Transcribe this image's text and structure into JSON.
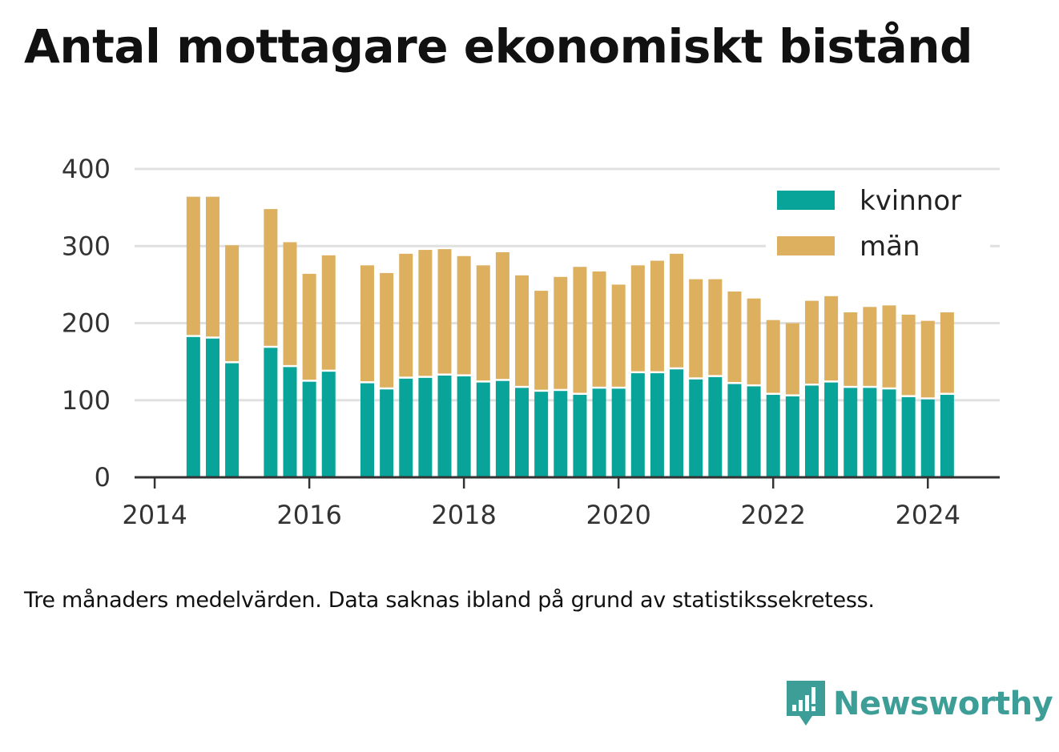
{
  "title": "Antal mottagare ekonomiskt bistånd",
  "note": "Tre månaders medelvärden. Data saknas ibland på grund av statistikssekretess.",
  "logo": {
    "text": "Newsworthy",
    "icon": "newsworthy-logo-icon"
  },
  "colors": {
    "kvinnor": "#08a399",
    "man": "#dcb05e",
    "grid": "#e0e0e0",
    "axis": "#333333"
  },
  "chart_data": {
    "type": "bar",
    "stacked": true,
    "xlabel": "",
    "ylabel": "",
    "ylim": [
      0,
      400
    ],
    "yticks": [
      0,
      100,
      200,
      300,
      400
    ],
    "xticks": [
      2014,
      2016,
      2018,
      2020,
      2022,
      2024
    ],
    "grid": true,
    "legend_position": "top-right",
    "x": [
      2014.5,
      2014.75,
      2015.0,
      2015.5,
      2015.75,
      2016.0,
      2016.25,
      2016.75,
      2017.0,
      2017.25,
      2017.5,
      2017.75,
      2018.0,
      2018.25,
      2018.5,
      2018.75,
      2019.0,
      2019.25,
      2019.5,
      2019.75,
      2020.0,
      2020.25,
      2020.5,
      2020.75,
      2021.0,
      2021.25,
      2021.5,
      2021.75,
      2022.0,
      2022.25,
      2022.5,
      2022.75,
      2023.0,
      2023.25,
      2023.5,
      2023.75,
      2024.0,
      2024.25
    ],
    "series": [
      {
        "name": "kvinnor",
        "values": [
          182,
          180,
          148,
          168,
          143,
          124,
          137,
          122,
          114,
          128,
          129,
          132,
          131,
          123,
          125,
          116,
          111,
          112,
          107,
          115,
          115,
          135,
          135,
          140,
          127,
          130,
          121,
          118,
          107,
          105,
          119,
          123,
          116,
          116,
          114,
          104,
          101,
          107
        ]
      },
      {
        "name": "män",
        "values": [
          182,
          184,
          153,
          180,
          162,
          140,
          151,
          153,
          151,
          162,
          166,
          164,
          156,
          152,
          167,
          146,
          131,
          148,
          166,
          152,
          135,
          140,
          146,
          150,
          130,
          127,
          120,
          114,
          97,
          95,
          110,
          112,
          98,
          105,
          109,
          107,
          102,
          107
        ]
      }
    ]
  }
}
